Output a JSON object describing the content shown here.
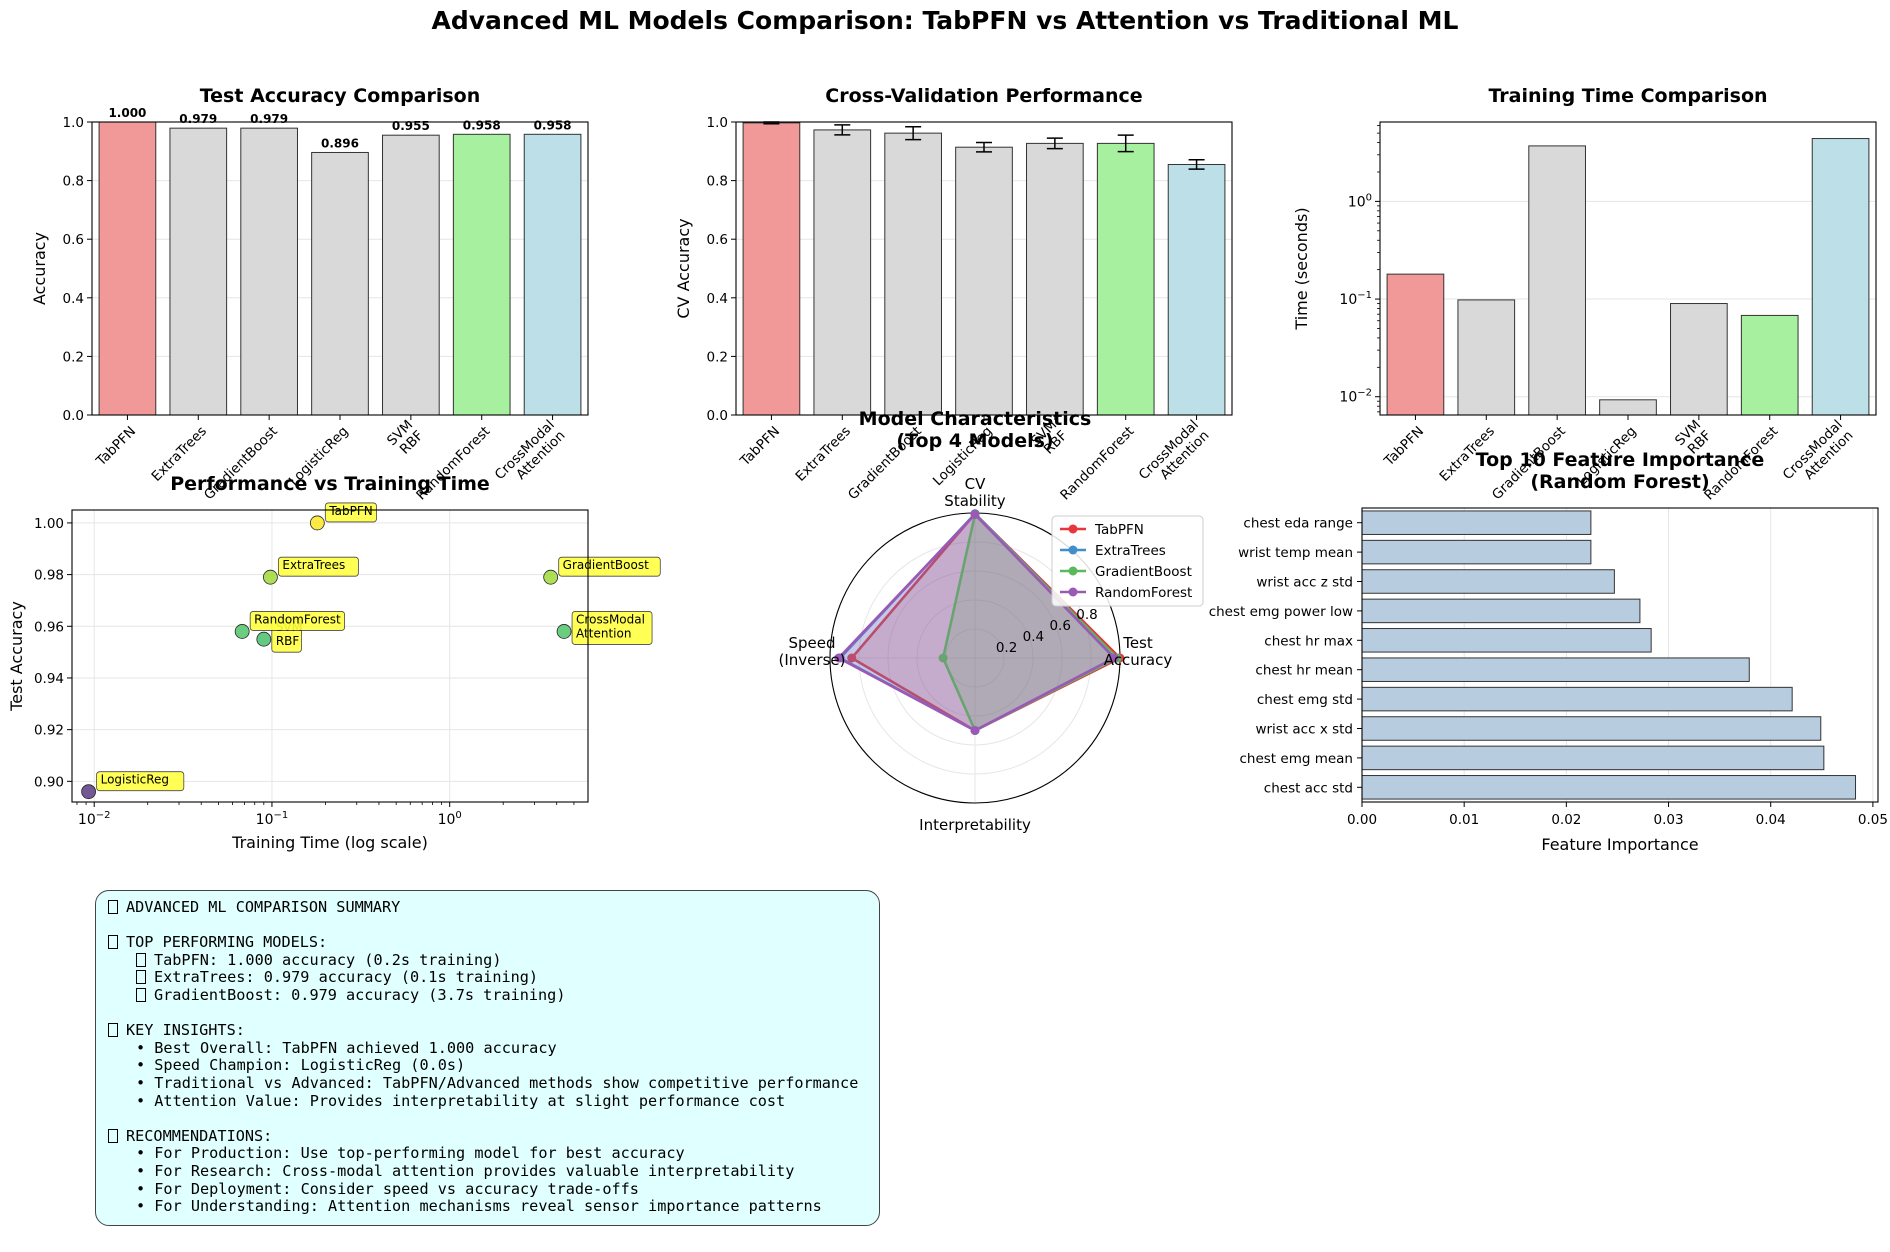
{
  "suptitle": "Advanced ML Models Comparison: TabPFN vs Attention vs Traditional ML",
  "colors": {
    "tabpfn": "#f19999",
    "traditional": "#d9d9d9",
    "randomforest": "#a6f0a0",
    "attention": "#bde0e8",
    "barh": "#b8cce0",
    "annot_box": "#ffff44",
    "summary_bg": "#e0ffff"
  },
  "chart_data": [
    {
      "id": "test_accuracy",
      "type": "bar",
      "title": "Test Accuracy Comparison",
      "xlabel": "",
      "ylabel": "Accuracy",
      "categories": [
        "TabPFN",
        "ExtraTrees",
        "GradientBoost",
        "LogisticReg",
        "SVM\nRBF",
        "RandomForest",
        "CrossModal\nAttention"
      ],
      "values": [
        1.0,
        0.979,
        0.979,
        0.896,
        0.955,
        0.958,
        0.958
      ],
      "value_labels": [
        "1.000",
        "0.979",
        "0.979",
        "0.896",
        "0.955",
        "0.958",
        "0.958"
      ],
      "ylim": [
        0,
        1.0
      ],
      "yticks": [
        "0.0",
        "0.2",
        "0.4",
        "0.6",
        "0.8",
        "1.0"
      ],
      "grid": true
    },
    {
      "id": "cv_performance",
      "type": "bar",
      "title": "Cross-Validation Performance",
      "xlabel": "",
      "ylabel": "CV Accuracy",
      "categories": [
        "TabPFN",
        "ExtraTrees",
        "GradientBoost",
        "LogisticReg",
        "SVM\nRBF",
        "RandomForest",
        "CrossModal\nAttention"
      ],
      "values": [
        0.997,
        0.973,
        0.962,
        0.914,
        0.927,
        0.927,
        0.855
      ],
      "errors": [
        0.003,
        0.017,
        0.022,
        0.016,
        0.018,
        0.028,
        0.016
      ],
      "ylim": [
        0,
        1.0
      ],
      "yticks": [
        "0.0",
        "0.2",
        "0.4",
        "0.6",
        "0.8",
        "1.0"
      ],
      "grid": true
    },
    {
      "id": "training_time",
      "type": "bar",
      "title": "Training Time Comparison",
      "xlabel": "",
      "ylabel": "Time (seconds)",
      "scale": "log",
      "categories": [
        "TabPFN",
        "ExtraTrees",
        "GradientBoost",
        "LogisticReg",
        "SVM\nRBF",
        "RandomForest",
        "CrossModal\nAttention"
      ],
      "values": [
        0.18,
        0.098,
        3.7,
        0.0093,
        0.09,
        0.068,
        4.4
      ],
      "ylim": [
        0.0065,
        6.5
      ],
      "yticks": [
        0.01,
        0.1,
        1
      ],
      "ytick_labels": [
        "10^-2",
        "10^-1",
        "10^0"
      ],
      "grid": true
    },
    {
      "id": "perf_vs_time",
      "type": "scatter",
      "title": "Performance vs Training Time",
      "xlabel": "Training Time (log scale)",
      "ylabel": "Test Accuracy",
      "xscale": "log",
      "xlim": [
        0.0075,
        6.0
      ],
      "ylim": [
        0.892,
        1.005
      ],
      "yticks": [
        "0.90",
        "0.92",
        "0.94",
        "0.96",
        "0.98",
        "1.00"
      ],
      "xtick_labels": [
        "10^-2",
        "10^-1",
        "10^0"
      ],
      "points": [
        {
          "label": "TabPFN",
          "x": 0.18,
          "y": 1.0,
          "color": "#fde725"
        },
        {
          "label": "ExtraTrees",
          "x": 0.098,
          "y": 0.979,
          "color": "#a0da39"
        },
        {
          "label": "GradientBoost",
          "x": 3.7,
          "y": 0.979,
          "color": "#a0da39"
        },
        {
          "label": "LogisticReg",
          "x": 0.0093,
          "y": 0.896,
          "color": "#5a3c82"
        },
        {
          "label": "SVM\nRBF",
          "x": 0.09,
          "y": 0.955,
          "color": "#4ac16d"
        },
        {
          "label": "RandomForest",
          "x": 0.068,
          "y": 0.958,
          "color": "#52c569"
        },
        {
          "label": "CrossModal\nAttention",
          "x": 4.4,
          "y": 0.958,
          "color": "#52c569"
        }
      ],
      "grid": true
    },
    {
      "id": "radar",
      "type": "radar",
      "title": "Model Characteristics\n(Top 4 Models)",
      "axes": [
        "Test\nAccuracy",
        "CV\nStability",
        "Speed\n(Inverse)",
        "Interpretability"
      ],
      "rticks": [
        "0.2",
        "0.4",
        "0.6",
        "0.8"
      ],
      "series": [
        {
          "name": "TabPFN",
          "color": "#e8363a",
          "values": [
            1.0,
            0.995,
            0.85,
            0.5
          ]
        },
        {
          "name": "ExtraTrees",
          "color": "#3f8fcb",
          "values": [
            0.98,
            0.995,
            0.93,
            0.5
          ]
        },
        {
          "name": "GradientBoost",
          "color": "#5cb85c",
          "values": [
            0.98,
            0.99,
            0.22,
            0.5
          ]
        },
        {
          "name": "RandomForest",
          "color": "#9b59b6",
          "values": [
            0.96,
            0.99,
            0.94,
            0.5
          ]
        }
      ]
    },
    {
      "id": "feature_importance",
      "type": "bar",
      "orientation": "horizontal",
      "title": "Top 10 Feature Importance\n(Random Forest)",
      "xlabel": "Feature Importance",
      "ylabel": "",
      "categories": [
        "chest eda range",
        "wrist temp mean",
        "wrist acc z std",
        "chest emg power low",
        "chest hr max",
        "chest hr mean",
        "chest emg std",
        "wrist acc x std",
        "chest emg mean",
        "chest acc std"
      ],
      "values": [
        0.0224,
        0.0224,
        0.0247,
        0.0272,
        0.0283,
        0.0379,
        0.0421,
        0.0449,
        0.0452,
        0.0483
      ],
      "xlim": [
        0,
        0.0505
      ],
      "xticks": [
        "0.00",
        "0.01",
        "0.02",
        "0.03",
        "0.04",
        "0.05"
      ],
      "grid": true
    }
  ],
  "summary": {
    "lines": [
      {
        "text": "ADVANCED ML COMPARISON SUMMARY",
        "icon": true,
        "indent": false
      },
      {
        "text": "",
        "blank": true
      },
      {
        "text": "TOP PERFORMING MODELS:",
        "icon": true,
        "indent": false
      },
      {
        "text": "TabPFN: 1.000 accuracy (0.2s training)",
        "icon": true,
        "indent": true
      },
      {
        "text": "ExtraTrees: 0.979 accuracy (0.1s training)",
        "icon": true,
        "indent": true
      },
      {
        "text": "GradientBoost: 0.979 accuracy (3.7s training)",
        "icon": true,
        "indent": true
      },
      {
        "text": "",
        "blank": true
      },
      {
        "text": "KEY INSIGHTS:",
        "icon": true,
        "indent": false
      },
      {
        "text": "• Best Overall: TabPFN achieved 1.000 accuracy",
        "icon": false,
        "indent": true
      },
      {
        "text": "• Speed Champion: LogisticReg (0.0s)",
        "icon": false,
        "indent": true
      },
      {
        "text": "• Traditional vs Advanced: TabPFN/Advanced methods show competitive performance",
        "icon": false,
        "indent": true
      },
      {
        "text": "• Attention Value: Provides interpretability at slight performance cost",
        "icon": false,
        "indent": true
      },
      {
        "text": "",
        "blank": true
      },
      {
        "text": "RECOMMENDATIONS:",
        "icon": true,
        "indent": false
      },
      {
        "text": "• For Production: Use top-performing model for best accuracy",
        "icon": false,
        "indent": true
      },
      {
        "text": "• For Research: Cross-modal attention provides valuable interpretability",
        "icon": false,
        "indent": true
      },
      {
        "text": "• For Deployment: Consider speed vs accuracy trade-offs",
        "icon": false,
        "indent": true
      },
      {
        "text": "• For Understanding: Attention mechanisms reveal sensor importance patterns",
        "icon": false,
        "indent": true
      }
    ]
  }
}
